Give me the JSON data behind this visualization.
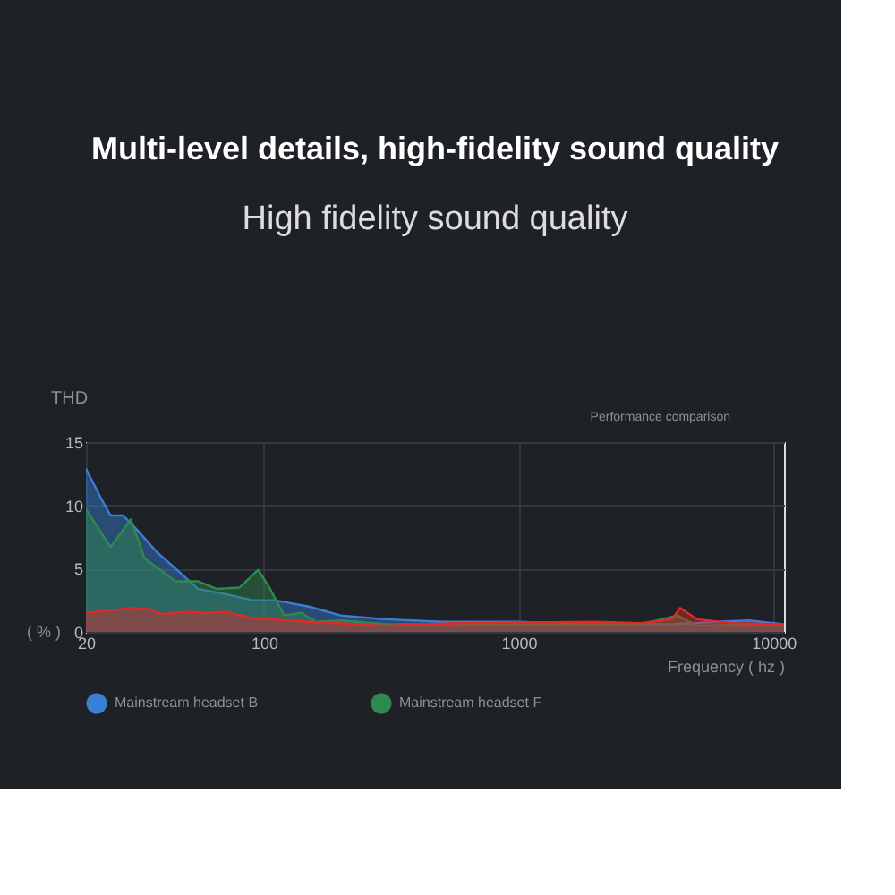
{
  "chart_data": {
    "type": "area",
    "title": "Multi-level details, high-fidelity sound quality",
    "subtitle": "High fidelity sound quality",
    "ylabel": "THD",
    "xlabel": "Frequency ( hz )",
    "annotations": [
      "Performance comparison",
      "( % )"
    ],
    "log": "x",
    "xlim": [
      20,
      11000
    ],
    "xticks": [
      20,
      100,
      1000,
      10000
    ],
    "ylim": [
      0,
      15
    ],
    "yticks": [
      0,
      5,
      10,
      15
    ],
    "grid": true,
    "legend": "bottom left",
    "series": [
      {
        "name": "Mainstream headset B",
        "color": "#3a7fd5",
        "x": [
          20,
          23,
          25,
          28,
          32,
          38,
          45,
          55,
          70,
          90,
          110,
          150,
          200,
          300,
          500,
          1000,
          2000,
          4000,
          6000,
          8000,
          11000
        ],
        "values": [
          12.9,
          10.5,
          9.2,
          9.2,
          8,
          6.3,
          5,
          3.4,
          3.0,
          2.5,
          2.5,
          2.0,
          1.3,
          1.0,
          0.8,
          0.8,
          0.6,
          0.6,
          0.8,
          0.9,
          0.6
        ]
      },
      {
        "name": "Mainstream headset F",
        "color": "#2e8a4e",
        "x": [
          20,
          25,
          30,
          34,
          45,
          55,
          65,
          80,
          95,
          105,
          120,
          140,
          160,
          200,
          300,
          1000,
          3000,
          3500,
          4200,
          5000,
          11000
        ],
        "values": [
          9.7,
          6.7,
          8.9,
          5.8,
          4.0,
          4.0,
          3.4,
          3.5,
          4.9,
          3.5,
          1.3,
          1.5,
          0.8,
          0.9,
          0.6,
          0.6,
          0.6,
          0.9,
          1.3,
          0.5,
          0.6
        ]
      },
      {
        "color": "#e02a2a",
        "x": [
          20,
          25,
          30,
          35,
          40,
          50,
          60,
          70,
          90,
          150,
          300,
          600,
          2000,
          3000,
          4000,
          4300,
          5000,
          7000,
          11000
        ],
        "values": [
          1.5,
          1.7,
          1.9,
          1.8,
          1.4,
          1.6,
          1.5,
          1.6,
          1.1,
          0.8,
          0.5,
          0.7,
          0.8,
          0.7,
          1.0,
          1.9,
          1.0,
          0.7,
          0.6
        ]
      }
    ]
  }
}
